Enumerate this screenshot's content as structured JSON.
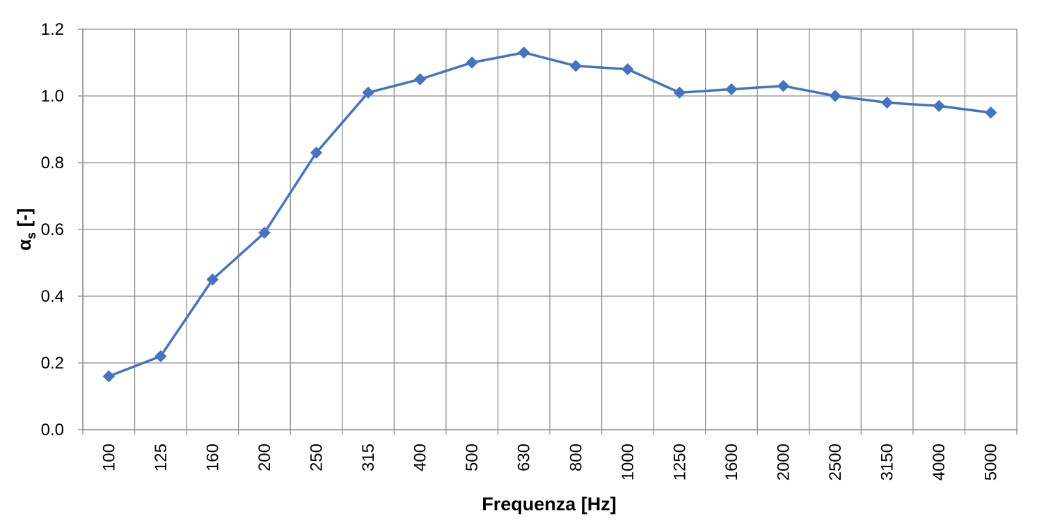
{
  "chart_data": {
    "type": "line",
    "title": "",
    "xlabel": "Frequenza [Hz]",
    "ylabel": {
      "symbol": "α",
      "subscript": "s",
      "unit": " [-]"
    },
    "categories": [
      "100",
      "125",
      "160",
      "200",
      "250",
      "315",
      "400",
      "500",
      "630",
      "800",
      "1000",
      "1250",
      "1600",
      "2000",
      "2500",
      "3150",
      "4000",
      "5000"
    ],
    "series": [
      {
        "values": [
          0.16,
          0.22,
          0.45,
          0.59,
          0.83,
          1.01,
          1.05,
          1.1,
          1.13,
          1.09,
          1.08,
          1.01,
          1.02,
          1.03,
          1.0,
          0.98,
          0.97,
          0.95
        ],
        "color": "#4472C4",
        "marker": "diamond"
      }
    ],
    "ylim": [
      0,
      1.2
    ],
    "yticks": [
      "0.0",
      "0.2",
      "0.4",
      "0.6",
      "0.8",
      "1.0",
      "1.2"
    ],
    "grid": true,
    "legend": "none"
  }
}
